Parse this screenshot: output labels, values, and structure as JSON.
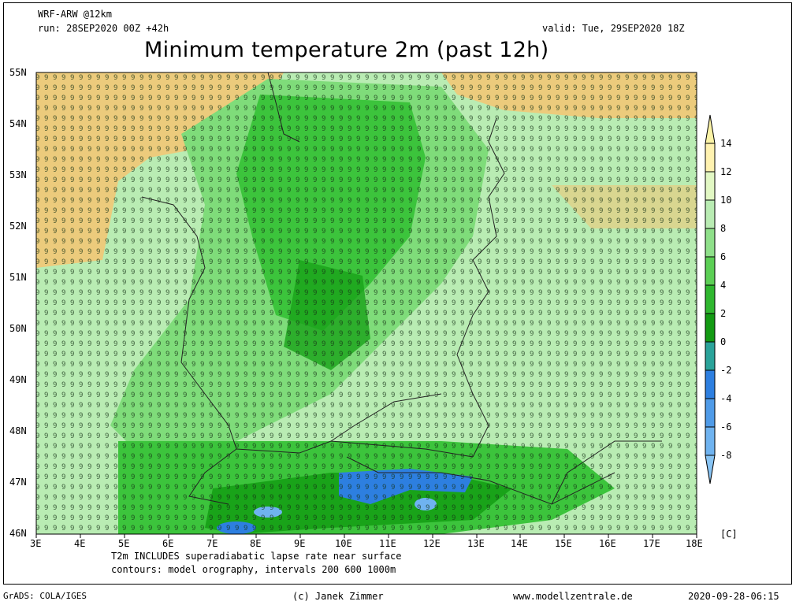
{
  "header": {
    "model": "WRF-ARW @12km",
    "run": "run: 28SEP2020 00Z +42h",
    "valid": "valid: Tue, 29SEP2020 18Z",
    "title": "Minimum temperature 2m (past 12h)"
  },
  "map": {
    "lon_labels": [
      "3E",
      "4E",
      "5E",
      "6E",
      "7E",
      "8E",
      "9E",
      "10E",
      "11E",
      "12E",
      "13E",
      "14E",
      "15E",
      "16E",
      "17E",
      "18E"
    ],
    "lat_labels": [
      "55N",
      "54N",
      "53N",
      "52N",
      "51N",
      "50N",
      "49N",
      "48N",
      "47N",
      "46N"
    ],
    "colors": {
      "orange": "#f4c572",
      "light_green": "#b9ecb3",
      "mid_green": "#7fdc7a",
      "green": "#3cc43c",
      "dark_green": "#19a319",
      "blue": "#2d7fe0",
      "light_blue": "#6fb3f0"
    }
  },
  "colorbar": {
    "labels": [
      "14",
      "12",
      "10",
      "8",
      "6",
      "4",
      "2",
      "0",
      "-2",
      "-4",
      "-6",
      "-8"
    ],
    "unit": "[C]",
    "colors": [
      "#fbf3a6",
      "#fff2b0",
      "#e2f8c4",
      "#b9ecb3",
      "#8fe08a",
      "#5ccf55",
      "#2fb72f",
      "#139a13",
      "#2aa39a",
      "#2d7fe0",
      "#4f9be8",
      "#88c4f4"
    ]
  },
  "footer": {
    "note1": "T2m INCLUDES superadiabatic lapse rate near surface",
    "note2": "contours: model orography, intervals 200 600 1000m",
    "grads": "GrADS: COLA/IGES",
    "credit": "(c) Janek Zimmer",
    "website": "www.modellzentrale.de",
    "timestamp": "2020-09-28-06:15"
  }
}
